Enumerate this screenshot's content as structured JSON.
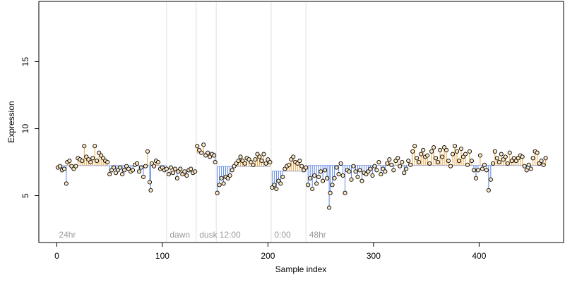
{
  "chart_data": {
    "type": "scatter",
    "title": "",
    "xlabel": "Sample index",
    "ylabel": "Expression",
    "xlim": [
      -17,
      480
    ],
    "ylim": [
      1.5,
      19.5
    ],
    "xticks": [
      0,
      100,
      200,
      300,
      400
    ],
    "yticks": [
      5,
      10,
      15
    ],
    "grid": false,
    "baseline_mode": "segment-mean",
    "colors": {
      "point_fill": "#fde7c2",
      "point_stroke": "#000000",
      "above": "#e8a33b",
      "below": "#5b86e5",
      "divider": "#dedede",
      "segment_text": "#9a9a9a",
      "segment_mean": "#8fa5e8"
    },
    "segments": [
      {
        "label": "24hr",
        "start": 0,
        "end": 104
      },
      {
        "label": "dawn",
        "start": 105,
        "end": 132
      },
      {
        "label": "dusk",
        "start": 133,
        "end": 151
      },
      {
        "label": "12:00",
        "start": 152,
        "end": 203
      },
      {
        "label": "0:00",
        "start": 204,
        "end": 236
      },
      {
        "label": "48hr",
        "start": 237,
        "end": 465
      }
    ],
    "series": [
      {
        "points": [
          [
            1,
            7.1
          ],
          [
            3,
            7.2
          ],
          [
            5,
            6.9
          ],
          [
            7,
            7.0
          ],
          [
            9,
            5.9
          ],
          [
            10,
            7.5
          ],
          [
            12,
            7.6
          ],
          [
            14,
            7.2
          ],
          [
            16,
            7.0
          ],
          [
            18,
            7.2
          ],
          [
            20,
            7.8
          ],
          [
            22,
            7.7
          ],
          [
            24,
            7.6
          ],
          [
            26,
            8.7
          ],
          [
            28,
            7.9
          ],
          [
            30,
            7.7
          ],
          [
            32,
            7.5
          ],
          [
            34,
            7.8
          ],
          [
            36,
            8.7
          ],
          [
            38,
            7.6
          ],
          [
            40,
            8.2
          ],
          [
            42,
            8.0
          ],
          [
            44,
            7.8
          ],
          [
            46,
            7.6
          ],
          [
            48,
            7.5
          ],
          [
            50,
            6.6
          ],
          [
            52,
            6.9
          ],
          [
            54,
            7.1
          ],
          [
            56,
            6.7
          ],
          [
            58,
            6.9
          ],
          [
            60,
            7.1
          ],
          [
            62,
            6.6
          ],
          [
            64,
            6.9
          ],
          [
            66,
            7.2
          ],
          [
            68,
            7.0
          ],
          [
            70,
            6.8
          ],
          [
            72,
            6.9
          ],
          [
            74,
            7.3
          ],
          [
            76,
            7.4
          ],
          [
            78,
            6.8
          ],
          [
            80,
            7.1
          ],
          [
            82,
            6.4
          ],
          [
            84,
            7.2
          ],
          [
            86,
            8.3
          ],
          [
            88,
            6.0
          ],
          [
            89,
            5.4
          ],
          [
            90,
            7.4
          ],
          [
            92,
            7.2
          ],
          [
            94,
            7.6
          ],
          [
            96,
            7.5
          ],
          [
            98,
            7.0
          ],
          [
            100,
            7.1
          ],
          [
            102,
            6.9
          ],
          [
            104,
            7.0
          ],
          [
            106,
            6.6
          ],
          [
            108,
            7.1
          ],
          [
            110,
            6.7
          ],
          [
            112,
            7.0
          ],
          [
            114,
            6.3
          ],
          [
            115,
            6.8
          ],
          [
            117,
            7.0
          ],
          [
            119,
            6.6
          ],
          [
            121,
            6.8
          ],
          [
            123,
            6.5
          ],
          [
            125,
            6.9
          ],
          [
            127,
            7.0
          ],
          [
            129,
            6.7
          ],
          [
            131,
            6.8
          ],
          [
            133,
            8.7
          ],
          [
            135,
            8.4
          ],
          [
            137,
            8.2
          ],
          [
            139,
            8.8
          ],
          [
            141,
            8.0
          ],
          [
            143,
            8.2
          ],
          [
            145,
            7.9
          ],
          [
            147,
            8.1
          ],
          [
            149,
            8.0
          ],
          [
            150,
            7.5
          ],
          [
            152,
            5.2
          ],
          [
            154,
            5.8
          ],
          [
            156,
            6.3
          ],
          [
            158,
            5.9
          ],
          [
            160,
            6.4
          ],
          [
            162,
            6.3
          ],
          [
            164,
            6.5
          ],
          [
            166,
            6.9
          ],
          [
            168,
            7.2
          ],
          [
            170,
            7.4
          ],
          [
            172,
            7.6
          ],
          [
            174,
            7.9
          ],
          [
            176,
            7.6
          ],
          [
            178,
            7.4
          ],
          [
            180,
            7.8
          ],
          [
            182,
            7.7
          ],
          [
            184,
            7.5
          ],
          [
            186,
            7.3
          ],
          [
            188,
            7.7
          ],
          [
            190,
            8.1
          ],
          [
            192,
            7.9
          ],
          [
            194,
            7.6
          ],
          [
            196,
            8.1
          ],
          [
            198,
            7.4
          ],
          [
            200,
            7.7
          ],
          [
            202,
            7.5
          ],
          [
            204,
            5.6
          ],
          [
            206,
            5.8
          ],
          [
            208,
            5.5
          ],
          [
            210,
            6.1
          ],
          [
            212,
            5.9
          ],
          [
            214,
            6.4
          ],
          [
            216,
            7.0
          ],
          [
            218,
            7.2
          ],
          [
            220,
            7.3
          ],
          [
            222,
            7.7
          ],
          [
            224,
            7.9
          ],
          [
            226,
            7.5
          ],
          [
            228,
            7.4
          ],
          [
            230,
            7.6
          ],
          [
            232,
            7.2
          ],
          [
            234,
            6.9
          ],
          [
            236,
            7.1
          ],
          [
            238,
            5.8
          ],
          [
            240,
            6.3
          ],
          [
            242,
            5.5
          ],
          [
            244,
            6.5
          ],
          [
            246,
            5.9
          ],
          [
            248,
            6.4
          ],
          [
            250,
            6.8
          ],
          [
            252,
            6.1
          ],
          [
            254,
            6.9
          ],
          [
            256,
            6.3
          ],
          [
            258,
            4.1
          ],
          [
            259,
            5.2
          ],
          [
            261,
            5.8
          ],
          [
            263,
            6.3
          ],
          [
            265,
            7.1
          ],
          [
            267,
            6.6
          ],
          [
            269,
            7.4
          ],
          [
            271,
            6.5
          ],
          [
            273,
            5.2
          ],
          [
            275,
            6.9
          ],
          [
            277,
            6.8
          ],
          [
            279,
            6.2
          ],
          [
            281,
            7.2
          ],
          [
            283,
            6.8
          ],
          [
            285,
            6.4
          ],
          [
            287,
            6.9
          ],
          [
            289,
            6.1
          ],
          [
            291,
            6.7
          ],
          [
            293,
            6.6
          ],
          [
            295,
            6.8
          ],
          [
            297,
            7.0
          ],
          [
            299,
            6.5
          ],
          [
            301,
            7.2
          ],
          [
            303,
            6.9
          ],
          [
            305,
            7.5
          ],
          [
            307,
            6.6
          ],
          [
            309,
            7.0
          ],
          [
            311,
            6.8
          ],
          [
            313,
            7.4
          ],
          [
            315,
            7.7
          ],
          [
            317,
            7.3
          ],
          [
            319,
            6.9
          ],
          [
            321,
            7.6
          ],
          [
            323,
            7.8
          ],
          [
            325,
            7.2
          ],
          [
            327,
            7.5
          ],
          [
            329,
            6.7
          ],
          [
            331,
            7.0
          ],
          [
            333,
            7.6
          ],
          [
            335,
            7.3
          ],
          [
            337,
            8.3
          ],
          [
            339,
            8.7
          ],
          [
            341,
            7.8
          ],
          [
            343,
            7.5
          ],
          [
            345,
            8.1
          ],
          [
            347,
            8.4
          ],
          [
            349,
            7.9
          ],
          [
            351,
            8.0
          ],
          [
            353,
            7.4
          ],
          [
            355,
            8.3
          ],
          [
            357,
            8.6
          ],
          [
            359,
            7.8
          ],
          [
            361,
            7.5
          ],
          [
            363,
            8.4
          ],
          [
            365,
            7.9
          ],
          [
            367,
            8.6
          ],
          [
            369,
            8.4
          ],
          [
            371,
            7.6
          ],
          [
            373,
            7.2
          ],
          [
            375,
            8.1
          ],
          [
            377,
            8.7
          ],
          [
            379,
            8.3
          ],
          [
            381,
            7.6
          ],
          [
            383,
            8.5
          ],
          [
            385,
            7.9
          ],
          [
            387,
            8.1
          ],
          [
            389,
            7.3
          ],
          [
            391,
            8.3
          ],
          [
            393,
            7.6
          ],
          [
            395,
            6.9
          ],
          [
            397,
            6.3
          ],
          [
            399,
            6.9
          ],
          [
            401,
            8.0
          ],
          [
            403,
            7.0
          ],
          [
            405,
            7.3
          ],
          [
            407,
            6.9
          ],
          [
            409,
            5.4
          ],
          [
            411,
            6.2
          ],
          [
            413,
            7.4
          ],
          [
            415,
            8.3
          ],
          [
            417,
            7.8
          ],
          [
            419,
            7.5
          ],
          [
            421,
            8.1
          ],
          [
            423,
            7.7
          ],
          [
            425,
            7.9
          ],
          [
            427,
            7.4
          ],
          [
            429,
            8.2
          ],
          [
            431,
            7.6
          ],
          [
            433,
            7.8
          ],
          [
            435,
            7.6
          ],
          [
            437,
            7.8
          ],
          [
            439,
            8.0
          ],
          [
            441,
            7.9
          ],
          [
            443,
            7.2
          ],
          [
            445,
            6.9
          ],
          [
            447,
            7.3
          ],
          [
            449,
            7.0
          ],
          [
            451,
            7.8
          ],
          [
            453,
            8.3
          ],
          [
            455,
            8.2
          ],
          [
            457,
            7.4
          ],
          [
            459,
            7.6
          ],
          [
            461,
            7.3
          ],
          [
            463,
            7.8
          ]
        ]
      }
    ]
  }
}
